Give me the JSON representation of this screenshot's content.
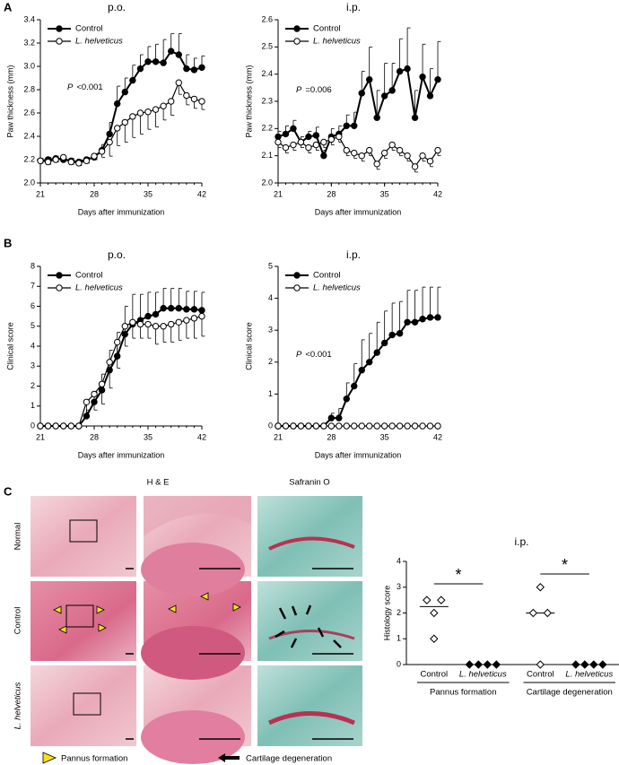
{
  "panels": {
    "a": "A",
    "b": "B",
    "c": "C"
  },
  "histology": {
    "columns": [
      "H & E",
      "Safranin O"
    ],
    "rows": [
      "Normal",
      "Control",
      "L. helveticus"
    ],
    "legend": [
      "Pannus formation",
      "Cartilage degeneration"
    ]
  },
  "chart_data": [
    {
      "type": "line",
      "title": "p.o.",
      "xlabel": "Days after immunization",
      "ylabel": "Paw thickness (mm)",
      "x": [
        21,
        22,
        23,
        24,
        25,
        26,
        27,
        28,
        29,
        30,
        31,
        32,
        33,
        34,
        35,
        36,
        37,
        38,
        39,
        40,
        41,
        42
      ],
      "xlim": [
        21,
        42
      ],
      "xticks": [
        21,
        28,
        35,
        42
      ],
      "ylim": [
        2,
        3.4
      ],
      "yticks": [
        {
          "value": 2,
          "label": "2.0"
        },
        {
          "value": 2.2,
          "label": "2.2"
        },
        {
          "value": 2.4,
          "label": "2.4"
        },
        {
          "value": 2.6,
          "label": "2.6"
        },
        {
          "value": 2.8,
          "label": "2.8"
        },
        {
          "value": 3,
          "label": "3.0"
        },
        {
          "value": 3.2,
          "label": "3.2"
        },
        {
          "value": 3.4,
          "label": "3.4"
        }
      ],
      "legend": "upper left",
      "annotation": {
        "symbol": "P",
        "text": "<0.001"
      },
      "series": [
        {
          "name": "Control",
          "color": "#000000",
          "marker": "filled",
          "error_direction": "up",
          "values": [
            2.19,
            2.2,
            2.21,
            2.2,
            2.19,
            2.18,
            2.2,
            2.22,
            2.28,
            2.42,
            2.68,
            2.78,
            2.88,
            2.98,
            3.04,
            3.04,
            3.03,
            3.13,
            3.1,
            2.98,
            2.97,
            2.99
          ],
          "errors": [
            0.02,
            0.02,
            0.02,
            0.02,
            0.02,
            0.02,
            0.02,
            0.03,
            0.05,
            0.1,
            0.15,
            0.12,
            0.13,
            0.12,
            0.13,
            0.15,
            0.2,
            0.15,
            0.18,
            0.12,
            0.1,
            0.1
          ]
        },
        {
          "name": "L. helveticus",
          "color": "#000000",
          "marker": "open",
          "font_style": "italic",
          "error_direction": "down",
          "values": [
            2.19,
            2.18,
            2.2,
            2.22,
            2.18,
            2.17,
            2.19,
            2.23,
            2.27,
            2.35,
            2.47,
            2.52,
            2.57,
            2.6,
            2.61,
            2.63,
            2.66,
            2.7,
            2.86,
            2.75,
            2.72,
            2.7
          ],
          "errors": [
            0.02,
            0.02,
            0.02,
            0.02,
            0.02,
            0.02,
            0.02,
            0.03,
            0.05,
            0.12,
            0.15,
            0.17,
            0.18,
            0.18,
            0.15,
            0.15,
            0.12,
            0.12,
            0.1,
            0.08,
            0.08,
            0.07
          ]
        }
      ]
    },
    {
      "type": "line",
      "title": "i.p.",
      "xlabel": "Days after immunization",
      "ylabel": "Paw thickness (mm)",
      "x": [
        21,
        22,
        23,
        24,
        25,
        26,
        27,
        28,
        29,
        30,
        31,
        32,
        33,
        34,
        35,
        36,
        37,
        38,
        39,
        40,
        41,
        42
      ],
      "xlim": [
        21,
        42
      ],
      "xticks": [
        21,
        28,
        35,
        42
      ],
      "ylim": [
        2,
        2.6
      ],
      "yticks": [
        {
          "value": 2,
          "label": "2.0"
        },
        2.1,
        2.2,
        2.3,
        2.4,
        2.5,
        2.6
      ],
      "legend": "upper left",
      "annotation": {
        "symbol": "P",
        "text": "=0.006"
      },
      "series": [
        {
          "name": "Control",
          "color": "#000000",
          "marker": "filled",
          "error_direction": "up",
          "values": [
            2.17,
            2.18,
            2.2,
            2.15,
            2.17,
            2.175,
            2.1,
            2.17,
            2.18,
            2.21,
            2.21,
            2.33,
            2.38,
            2.24,
            2.32,
            2.34,
            2.41,
            2.42,
            2.24,
            2.39,
            2.32,
            2.38
          ],
          "errors": [
            0.02,
            0.03,
            0.03,
            0.02,
            0.02,
            0.03,
            0.02,
            0.03,
            0.03,
            0.04,
            0.05,
            0.08,
            0.12,
            0.1,
            0.12,
            0.1,
            0.12,
            0.15,
            0.1,
            0.12,
            0.1,
            0.14
          ]
        },
        {
          "name": "L. helveticus",
          "color": "#000000",
          "marker": "open",
          "font_style": "italic",
          "error_direction": "down",
          "values": [
            2.15,
            2.13,
            2.14,
            2.15,
            2.13,
            2.14,
            2.15,
            2.16,
            2.17,
            2.12,
            2.11,
            2.1,
            2.12,
            2.07,
            2.11,
            2.14,
            2.12,
            2.1,
            2.06,
            2.1,
            2.08,
            2.12
          ],
          "errors": [
            0.02,
            0.02,
            0.02,
            0.02,
            0.02,
            0.02,
            0.02,
            0.02,
            0.02,
            0.02,
            0.02,
            0.02,
            0.02,
            0.02,
            0.02,
            0.02,
            0.02,
            0.02,
            0.02,
            0.02,
            0.02,
            0.02
          ]
        }
      ]
    },
    {
      "type": "line",
      "title": "p.o.",
      "xlabel": "Days after immunization",
      "ylabel": "Clinical score",
      "x": [
        21,
        22,
        23,
        24,
        25,
        26,
        27,
        28,
        29,
        30,
        31,
        32,
        33,
        34,
        35,
        36,
        37,
        38,
        39,
        40,
        41,
        42
      ],
      "xlim": [
        21,
        42
      ],
      "xticks": [
        21,
        28,
        35,
        42
      ],
      "ylim": [
        0,
        8
      ],
      "yticks": [
        0,
        1,
        2,
        3,
        4,
        5,
        6,
        7,
        8
      ],
      "legend": "upper left",
      "series": [
        {
          "name": "Control",
          "color": "#000000",
          "marker": "filled",
          "error_direction": "up",
          "values": [
            0,
            0,
            0,
            0,
            0,
            0,
            0.5,
            1.2,
            1.8,
            2.8,
            3.5,
            4.6,
            5.1,
            5.3,
            5.5,
            5.6,
            5.9,
            5.9,
            5.9,
            5.85,
            5.85,
            5.8
          ],
          "errors": [
            0,
            0,
            0,
            0,
            0,
            0,
            0.3,
            0.5,
            0.8,
            1.0,
            1.2,
            1.4,
            1.5,
            1.3,
            1.2,
            1.1,
            1.0,
            1.0,
            1.0,
            0.9,
            0.9,
            0.9
          ]
        },
        {
          "name": "L. helveticus",
          "color": "#000000",
          "marker": "open",
          "font_style": "italic",
          "error_direction": "down",
          "values": [
            0,
            0,
            0,
            0,
            0,
            0,
            1.2,
            1.6,
            2.1,
            3.2,
            4.2,
            5.0,
            5.2,
            5.1,
            5.1,
            5.0,
            5.0,
            5.1,
            5.2,
            5.3,
            5.4,
            5.5
          ],
          "errors": [
            0,
            0,
            0,
            0,
            0,
            0,
            0.5,
            0.8,
            1.0,
            1.3,
            1.3,
            1.0,
            0.8,
            0.7,
            0.7,
            0.9,
            0.8,
            0.9,
            0.9,
            0.9,
            1.0,
            1.0
          ]
        }
      ]
    },
    {
      "type": "line",
      "title": "i.p.",
      "xlabel": "Days after immunization",
      "ylabel": "Clinical score",
      "x": [
        21,
        22,
        23,
        24,
        25,
        26,
        27,
        28,
        29,
        30,
        31,
        32,
        33,
        34,
        35,
        36,
        37,
        38,
        39,
        40,
        41,
        42
      ],
      "xlim": [
        21,
        42
      ],
      "xticks": [
        21,
        28,
        35,
        42
      ],
      "ylim": [
        0,
        5
      ],
      "yticks": [
        0,
        1,
        2,
        3,
        4,
        5
      ],
      "legend": "upper left",
      "annotation": {
        "symbol": "P",
        "text": "<0.001"
      },
      "series": [
        {
          "name": "Control",
          "color": "#000000",
          "marker": "filled",
          "error_direction": "up",
          "values": [
            0,
            0,
            0,
            0,
            0,
            0,
            0,
            0.25,
            0.25,
            0.85,
            1.25,
            1.75,
            2.0,
            2.3,
            2.6,
            2.85,
            2.9,
            3.25,
            3.25,
            3.35,
            3.4,
            3.4
          ],
          "errors": [
            0,
            0,
            0,
            0,
            0,
            0,
            0,
            0.15,
            0.3,
            0.5,
            0.7,
            0.95,
            0.9,
            0.95,
            1.0,
            1.0,
            1.0,
            1.0,
            1.0,
            1.0,
            0.95,
            0.95
          ]
        },
        {
          "name": "L. helveticus",
          "color": "#000000",
          "marker": "open",
          "font_style": "italic",
          "error_direction": "down",
          "values": [
            0,
            0,
            0,
            0,
            0,
            0,
            0,
            0,
            0,
            0,
            0,
            0,
            0,
            0,
            0,
            0,
            0,
            0,
            0,
            0,
            0,
            0
          ],
          "errors": [
            0,
            0,
            0,
            0,
            0,
            0,
            0,
            0,
            0,
            0,
            0,
            0,
            0,
            0,
            0,
            0,
            0,
            0,
            0,
            0,
            0,
            0
          ]
        }
      ]
    },
    {
      "type": "dot",
      "title": "i.p.",
      "ylabel": "Histology score",
      "ylim": [
        0,
        4
      ],
      "yticks": [
        0,
        1,
        2,
        3,
        4
      ],
      "groups": [
        {
          "name": "Pannus formation",
          "annotation": "*",
          "series": [
            {
              "name": "Control",
              "marker": "open",
              "values": [
                2.5,
                2.5,
                2,
                1
              ],
              "mean": 2.25
            },
            {
              "name": "L. helveticus",
              "marker": "filled",
              "font_style": "italic",
              "values": [
                0,
                0,
                0,
                0
              ]
            }
          ]
        },
        {
          "name": "Cartilage degeneration",
          "annotation": "*",
          "series": [
            {
              "name": "Control",
              "marker": "open",
              "values": [
                3,
                2,
                2,
                0
              ],
              "mean": 2
            },
            {
              "name": "L. helveticus",
              "marker": "filled",
              "font_style": "italic",
              "values": [
                0,
                0,
                0,
                0
              ]
            }
          ]
        }
      ]
    }
  ]
}
